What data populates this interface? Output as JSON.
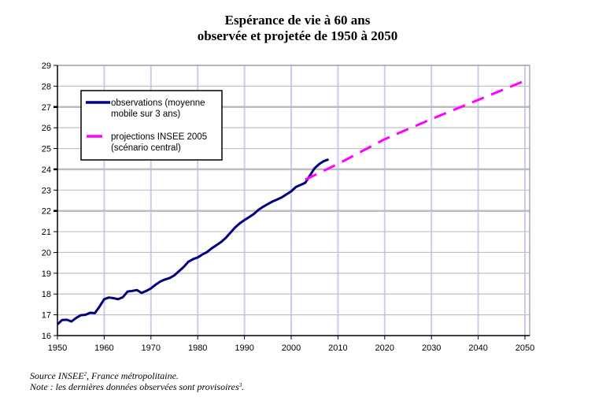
{
  "chart_data": {
    "type": "line",
    "title": "Espérance de vie à 60 ans",
    "subtitle": "observée et projetée de 1950 à 2050",
    "xlabel": "",
    "ylabel": "",
    "xlim": [
      1950,
      2050
    ],
    "ylim": [
      16,
      29
    ],
    "x_ticks": [
      1950,
      1960,
      1970,
      1980,
      1990,
      2000,
      2010,
      2020,
      2030,
      2040,
      2050
    ],
    "y_ticks": [
      16,
      17,
      18,
      19,
      20,
      21,
      22,
      23,
      24,
      25,
      26,
      27,
      28,
      29
    ],
    "emphasized_y_gridlines": [
      22,
      24,
      27
    ],
    "grid": true,
    "legend_position": "top-left",
    "series": [
      {
        "name": "observations (moyenne mobile sur 3 ans)",
        "legend_lines": [
          "observations (moyenne",
          "mobile sur 3 ans)"
        ],
        "color": "#000080",
        "style": "solid",
        "x": [
          1950,
          1951,
          1952,
          1953,
          1954,
          1955,
          1956,
          1957,
          1958,
          1959,
          1960,
          1961,
          1962,
          1963,
          1964,
          1965,
          1966,
          1967,
          1968,
          1969,
          1970,
          1971,
          1972,
          1973,
          1974,
          1975,
          1976,
          1977,
          1978,
          1979,
          1980,
          1981,
          1982,
          1983,
          1984,
          1985,
          1986,
          1987,
          1988,
          1989,
          1990,
          1991,
          1992,
          1993,
          1994,
          1995,
          1996,
          1997,
          1998,
          1999,
          2000,
          2001,
          2002,
          2003,
          2004,
          2005,
          2006,
          2007,
          2008
        ],
        "values": [
          16.54,
          16.75,
          16.76,
          16.68,
          16.85,
          16.98,
          17.0,
          17.1,
          17.08,
          17.4,
          17.75,
          17.83,
          17.8,
          17.75,
          17.85,
          18.12,
          18.15,
          18.19,
          18.05,
          18.15,
          18.27,
          18.45,
          18.6,
          18.7,
          18.77,
          18.9,
          19.1,
          19.3,
          19.55,
          19.68,
          19.76,
          19.9,
          20.02,
          20.2,
          20.35,
          20.5,
          20.7,
          20.95,
          21.2,
          21.4,
          21.56,
          21.7,
          21.85,
          22.05,
          22.2,
          22.33,
          22.45,
          22.55,
          22.65,
          22.8,
          22.94,
          23.15,
          23.25,
          23.35,
          23.7,
          24.05,
          24.25,
          24.4,
          24.48
        ]
      },
      {
        "name": "projections INSEE 2005 (scénario central)",
        "legend_lines": [
          "projections INSEE 2005",
          "(scénario central)"
        ],
        "color": "#ff00ff",
        "style": "dashed",
        "x": [
          2003,
          2010,
          2020,
          2030,
          2040,
          2050
        ],
        "values": [
          23.5,
          24.26,
          25.45,
          26.42,
          27.34,
          28.26
        ]
      }
    ]
  },
  "notes": {
    "source_text": "Source INSEE",
    "source_sup": "2",
    "source_rest": ", France métropolitaine.",
    "note_text": "Note : les dernières données observées sont provisoires",
    "note_sup": "3",
    "note_rest": "."
  }
}
